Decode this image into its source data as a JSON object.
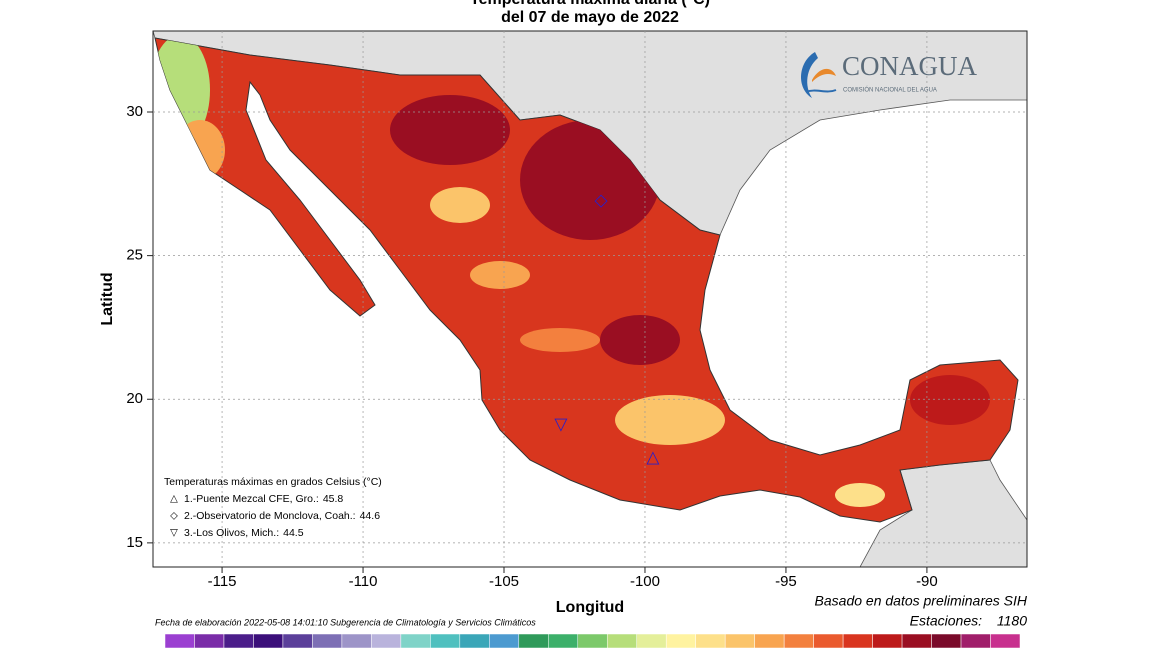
{
  "header": {
    "title": "Temperatura máxima diaria (°C)",
    "subtitle": "del 07 de mayo de 2022"
  },
  "map": {
    "xlabel": "Longitud",
    "ylabel": "Latitud",
    "xlim": [
      -117.45,
      -86.45
    ],
    "ylim": [
      14.16,
      32.82
    ],
    "xticks": [
      -115,
      -110,
      -105,
      -100,
      -95,
      -90
    ],
    "yticks": [
      15,
      20,
      25,
      30
    ],
    "grid": true
  },
  "legend": {
    "title": "Temperaturas máximas en grados Celsius (°C)",
    "stations": [
      {
        "symbol": "△",
        "label": "1.-Puente Mezcal CFE, Gro.:",
        "value": 45.8,
        "lon": -99.72,
        "lat": 17.96
      },
      {
        "symbol": "◇",
        "label": "2.-Observatorio de Monclova, Coah.:",
        "value": 44.6,
        "lon": -101.56,
        "lat": 26.9
      },
      {
        "symbol": "▽",
        "label": "3.-Los Olivos, Mich.:",
        "value": 44.5,
        "lon": -102.98,
        "lat": 19.1
      }
    ]
  },
  "logo": {
    "name": "CONAGUA",
    "tagline": "COMISIÓN NACIONAL DEL AGUA"
  },
  "footer": {
    "credit": "Fecha de elaboración 2022-05-08 14:01:10 Subgerencia de Climatología y Servicios Climáticos",
    "source": "Basado en datos preliminares SIH",
    "stations_label": "Estaciones:",
    "stations_count": 1180
  },
  "colorbar": [
    "#9b3fd1",
    "#7a2ca8",
    "#4b1d8a",
    "#3b0f7a",
    "#5b3f9a",
    "#7d6fb5",
    "#9d94c8",
    "#b9b3dc",
    "#7fd3c8",
    "#4fc0bf",
    "#3aa6b8",
    "#4c9ad0",
    "#2f9a5a",
    "#3cb06a",
    "#7cc96a",
    "#b6de7a",
    "#e4ef9a",
    "#fff3a0",
    "#fde08a",
    "#fbc46a",
    "#f8a450",
    "#f3803e",
    "#ea5a2e",
    "#d9351f",
    "#bd1a1a",
    "#9a0e22",
    "#7a0a2a",
    "#a01e6a",
    "#c8308e"
  ]
}
